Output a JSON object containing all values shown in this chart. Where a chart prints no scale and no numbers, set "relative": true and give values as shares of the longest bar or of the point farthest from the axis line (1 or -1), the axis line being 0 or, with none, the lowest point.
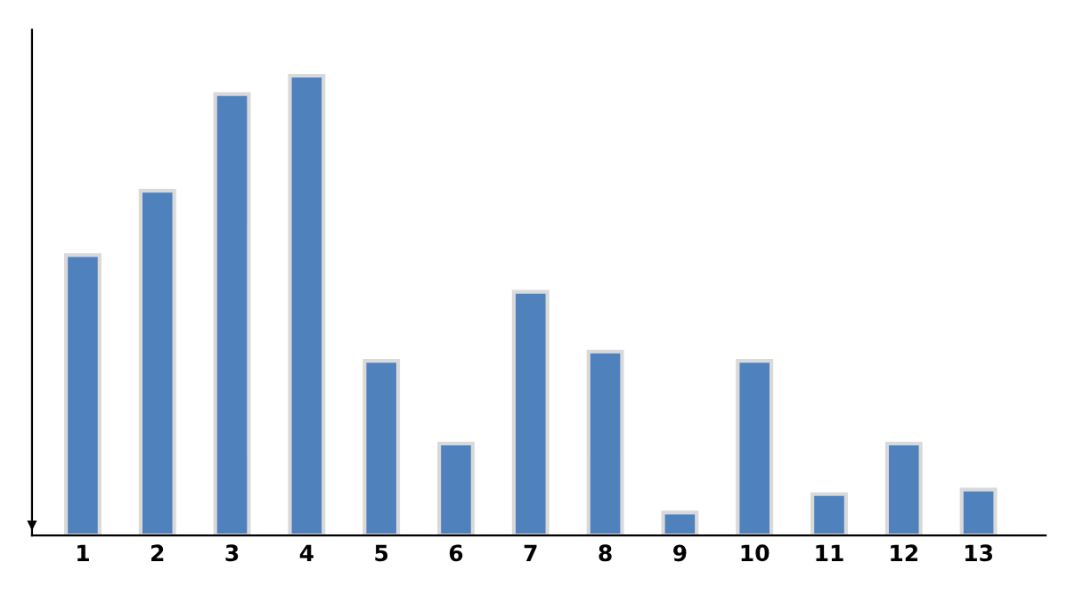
{
  "chart_data": {
    "type": "bar",
    "relative": true,
    "categories": [
      "1",
      "2",
      "3",
      "4",
      "5",
      "6",
      "7",
      "8",
      "9",
      "10",
      "11",
      "12",
      "13"
    ],
    "values": [
      0.61,
      0.75,
      0.96,
      1,
      0.38,
      0.2,
      0.53,
      0.4,
      0.05,
      0.38,
      0.09,
      0.2,
      0.1
    ],
    "color": "#4f81bd",
    "grid": false,
    "legend": false
  }
}
